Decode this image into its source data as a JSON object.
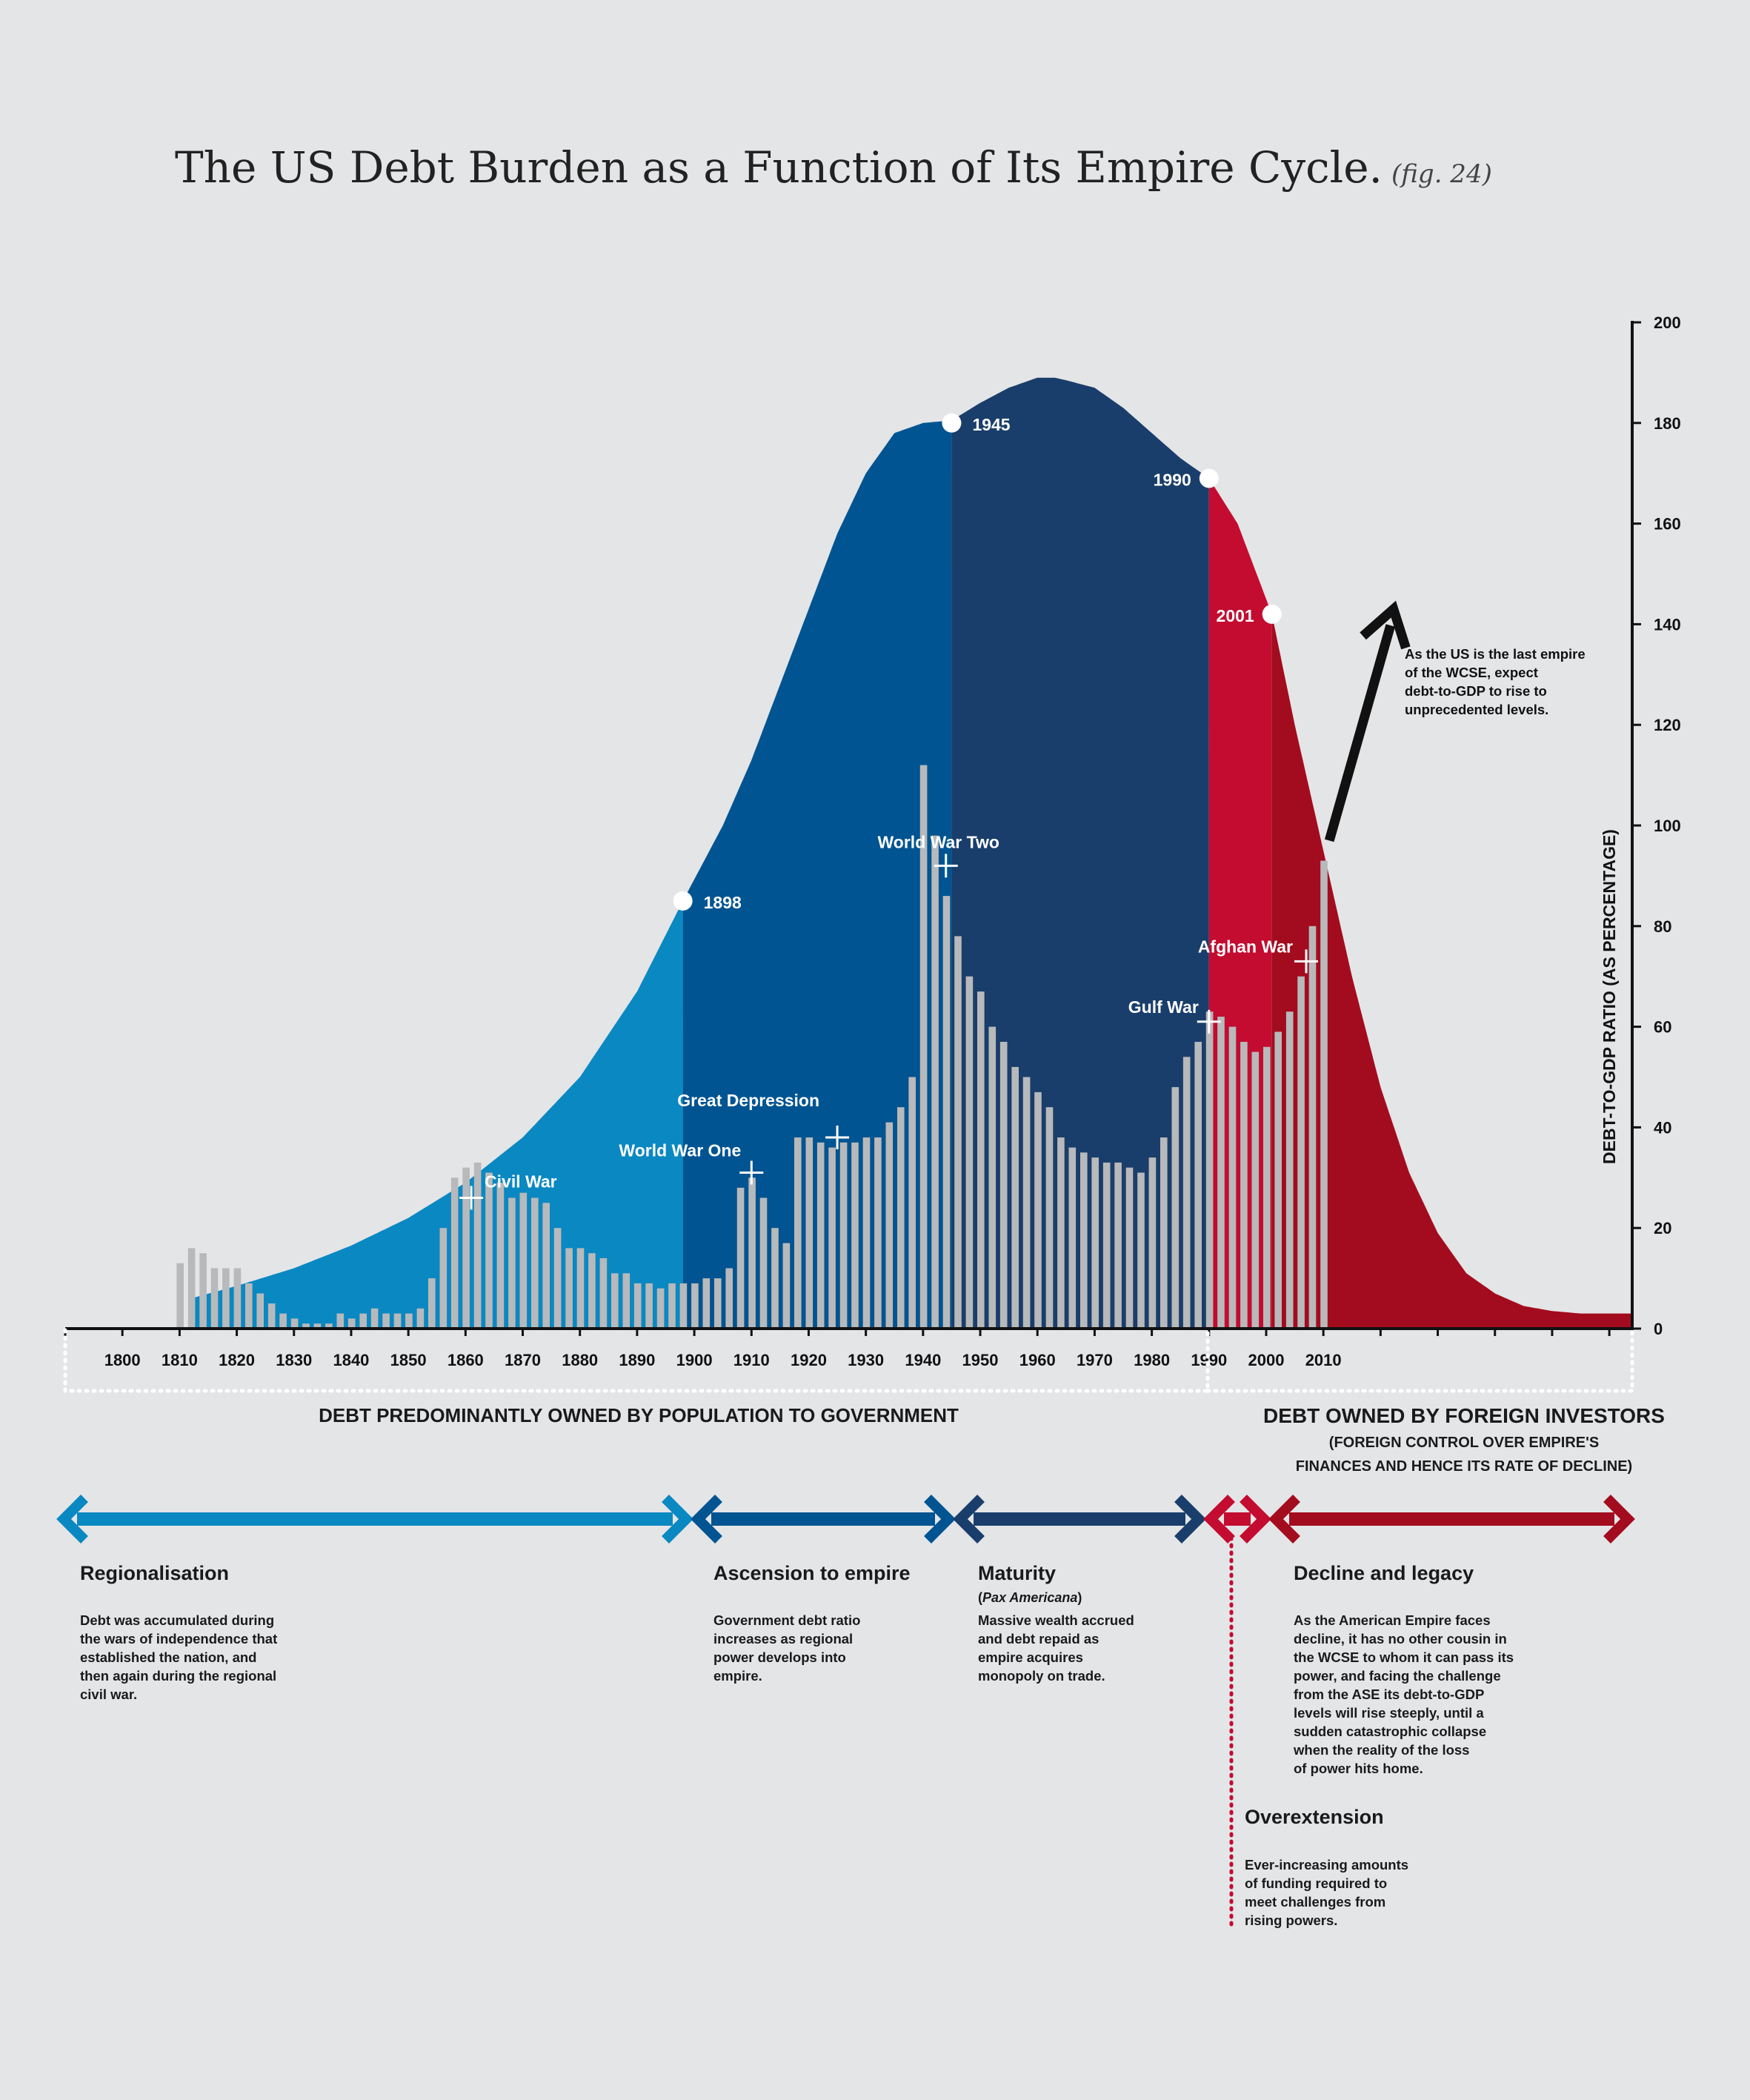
{
  "title": "The US Debt Burden as a Function of Its Empire Cycle.",
  "fig_label": "(fig. 24)",
  "colors": {
    "background": "#e4e5e7",
    "regionalisation": "#0a88c2",
    "ascension": "#005491",
    "maturity": "#1a3e6b",
    "overextension": "#c30c30",
    "decline": "#a30c1e",
    "bars": "#b8b9bb"
  },
  "chart_data": {
    "type": "area",
    "title": "The US Debt Burden as a Function of Its Empire Cycle.",
    "xlim": [
      1790,
      2064
    ],
    "ylim": [
      0,
      200
    ],
    "x_ticks": [
      1800,
      1810,
      1820,
      1830,
      1840,
      1850,
      1860,
      1870,
      1880,
      1890,
      1900,
      1910,
      1920,
      1930,
      1940,
      1950,
      1960,
      1970,
      1980,
      1990,
      2000,
      2010
    ],
    "y_ticks": [
      0,
      20,
      40,
      60,
      80,
      100,
      120,
      140,
      160,
      180,
      200
    ],
    "ylabel": "DEBT-TO-GDP RATIO (AS PERCENTAGE)",
    "grid": false,
    "empire_cycle_curve": {
      "x": [
        1812,
        1820,
        1830,
        1840,
        1850,
        1860,
        1870,
        1880,
        1890,
        1898,
        1905,
        1910,
        1915,
        1920,
        1925,
        1930,
        1935,
        1940,
        1945,
        1950,
        1955,
        1960,
        1963,
        1965,
        1970,
        1975,
        1980,
        1985,
        1990,
        1995,
        2001,
        2005,
        2010,
        2015,
        2020,
        2025,
        2030,
        2035,
        2040,
        2045,
        2050,
        2055,
        2060,
        2064
      ],
      "y": [
        6,
        8.5,
        12,
        16.5,
        22,
        29,
        38,
        50,
        67,
        85,
        100,
        113,
        128,
        143,
        158,
        170,
        178,
        180,
        180.5,
        184,
        187,
        189,
        189,
        188.5,
        187,
        183,
        178,
        173,
        169,
        160,
        142,
        120,
        95,
        70,
        48,
        31,
        19,
        11,
        7,
        4.5,
        3.5,
        3,
        3,
        3
      ]
    },
    "phases": [
      {
        "name": "Regionalisation",
        "from": 1790,
        "to": 1898
      },
      {
        "name": "Ascension to empire",
        "from": 1898,
        "to": 1945
      },
      {
        "name": "Maturity",
        "from": 1945,
        "to": 1990
      },
      {
        "name": "Overextension",
        "from": 1990,
        "to": 2001
      },
      {
        "name": "Decline and legacy",
        "from": 2001,
        "to": 2064
      }
    ],
    "debt_to_gdp": {
      "years": [
        1810,
        1812,
        1814,
        1816,
        1818,
        1820,
        1822,
        1824,
        1826,
        1828,
        1830,
        1832,
        1834,
        1836,
        1838,
        1840,
        1842,
        1844,
        1846,
        1848,
        1850,
        1852,
        1854,
        1856,
        1858,
        1860,
        1862,
        1864,
        1866,
        1868,
        1870,
        1872,
        1874,
        1876,
        1878,
        1880,
        1882,
        1884,
        1886,
        1888,
        1890,
        1892,
        1894,
        1896,
        1898,
        1900,
        1902,
        1904,
        1906,
        1908,
        1910,
        1912,
        1914,
        1916,
        1918,
        1920,
        1922,
        1924,
        1926,
        1928,
        1930,
        1932,
        1934,
        1936,
        1938,
        1940,
        1942,
        1944,
        1946,
        1948,
        1950,
        1952,
        1954,
        1956,
        1958,
        1960,
        1962,
        1964,
        1966,
        1968,
        1970,
        1972,
        1974,
        1976,
        1978,
        1980,
        1982,
        1984,
        1986,
        1988,
        1990,
        1992,
        1994,
        1996,
        1998,
        2000,
        2002,
        2004,
        2006,
        2008,
        2010
      ],
      "values": [
        13,
        16,
        15,
        12,
        12,
        12,
        9,
        7,
        5,
        3,
        2,
        1,
        1,
        1,
        3,
        2,
        3,
        4,
        3,
        3,
        3,
        4,
        10,
        20,
        30,
        32,
        33,
        31,
        29,
        26,
        27,
        26,
        25,
        20,
        16,
        16,
        15,
        14,
        11,
        11,
        9,
        9,
        8,
        9,
        9,
        9,
        10,
        10,
        12,
        28,
        30,
        26,
        20,
        17,
        38,
        38,
        37,
        36,
        37,
        37,
        38,
        38,
        41,
        44,
        50,
        112,
        98,
        86,
        78,
        70,
        67,
        60,
        57,
        52,
        50,
        47,
        44,
        38,
        36,
        35,
        34,
        33,
        33,
        32,
        31,
        34,
        38,
        48,
        54,
        57,
        63,
        62,
        60,
        57,
        55,
        56,
        59,
        63,
        70,
        80,
        93
      ]
    },
    "labeled_points": [
      {
        "year": 1898,
        "value": 85,
        "label": "1898"
      },
      {
        "year": 1945,
        "value": 180,
        "label": "1945"
      },
      {
        "year": 1990,
        "value": 169,
        "label": "1990"
      },
      {
        "year": 2001,
        "value": 142,
        "label": "2001"
      }
    ],
    "events": [
      {
        "year": 1861,
        "value": 26,
        "label": "Civil War"
      },
      {
        "year": 1910,
        "value": 31,
        "label": "World War One"
      },
      {
        "year": 1925,
        "value": 38,
        "label": "Great Depression"
      },
      {
        "year": 1944,
        "value": 92,
        "label": "World War Two"
      },
      {
        "year": 1990,
        "value": 61,
        "label": "Gulf War"
      },
      {
        "year": 2007,
        "value": 73,
        "label": "Afghan War"
      }
    ],
    "projection_arrow": {
      "from_year": 2010,
      "from_value": 97,
      "to_year": 2022,
      "to_value": 143
    }
  },
  "ownership": {
    "domestic": "DEBT PREDOMINANTLY OWNED BY POPULATION TO GOVERNMENT",
    "foreign": "DEBT OWNED BY FOREIGN INVESTORS",
    "foreign_note_line1": "(FOREIGN CONTROL OVER EMPIRE'S",
    "foreign_note_line2": "FINANCES AND HENCE ITS RATE OF DECLINE)"
  },
  "projection_note": "As the US is the last empire\nof the WCSE, expect\ndebt-to-GDP to rise to\nunprecedented levels.",
  "phases_text": {
    "regionalisation": {
      "title": "Regionalisation",
      "desc": "Debt was accumulated during\nthe wars of independence that\nestablished the nation, and\nthen again during the regional\ncivil war."
    },
    "ascension": {
      "title": "Ascension to empire",
      "desc": "Government debt ratio\nincreases as regional\npower develops into\nempire."
    },
    "maturity": {
      "title": "Maturity",
      "sub": "Pax Americana",
      "desc": "Massive wealth accrued\nand debt repaid as\nempire acquires\nmonopoly on trade."
    },
    "overextension": {
      "title": "Overextension",
      "desc": "Ever-increasing amounts\nof funding required to\nmeet challenges from\nrising powers."
    },
    "decline": {
      "title": "Decline and legacy",
      "desc": "As the American Empire faces\ndecline, it has no other cousin in\nthe WCSE to whom it can pass its\npower, and facing the challenge\nfrom the ASE its debt-to-GDP\nlevels will rise steeply, until a\nsudden catastrophic collapse\nwhen the reality of the loss\nof power hits home."
    }
  }
}
